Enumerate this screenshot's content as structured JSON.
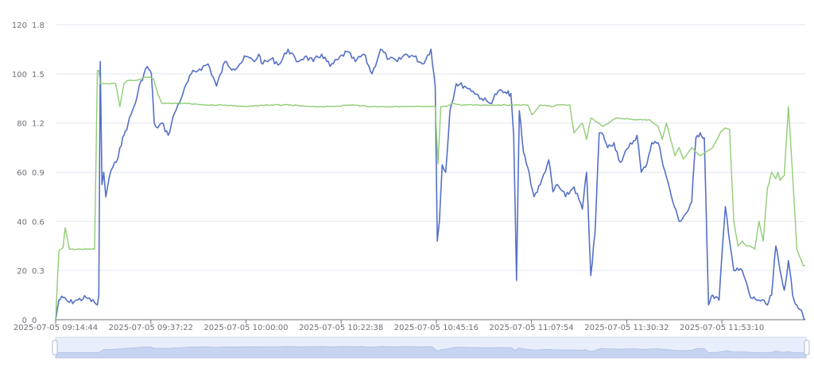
{
  "chart_data": {
    "type": "line",
    "title": "",
    "y_left": {
      "min": 0,
      "max": 120,
      "ticks": [
        0,
        20,
        40,
        60,
        80,
        100,
        120
      ]
    },
    "y_right": {
      "min": 0,
      "max": 1.8,
      "ticks": [
        "0",
        "0.3",
        "0.6",
        "0.9",
        "1.2",
        "1.5",
        "1.8"
      ]
    },
    "x_axis": {
      "start": "2025-07-05 09:14:44",
      "end": "2025-07-05 12:13:00",
      "tick_labels": [
        "2025-07-05 09:14:44",
        "2025-07-05 09:37:22",
        "2025-07-05 10:00:00",
        "2025-07-05 10:22:38",
        "2025-07-05 10:45:16",
        "2025-07-05 11:07:54",
        "2025-07-05 11:30:32",
        "2025-07-05 11:53:10"
      ]
    },
    "grid": true,
    "legend": "none",
    "series": [
      {
        "axis": "left",
        "color": "#5470c6",
        "x": [
          "09:14:44",
          "09:15:30",
          "09:16:30",
          "09:18:00",
          "09:20:00",
          "09:22:00",
          "09:24:00",
          "09:24:40",
          "09:25:00",
          "09:25:20",
          "09:25:45",
          "09:26:10",
          "09:26:40",
          "09:27:30",
          "09:28:20",
          "09:29:10",
          "09:30:00",
          "09:31:00",
          "09:32:00",
          "09:33:00",
          "09:34:00",
          "09:35:00",
          "09:36:30",
          "09:37:30",
          "09:38:10",
          "09:39:00",
          "09:40:00",
          "09:41:30",
          "09:43:00",
          "09:45:00",
          "09:47:00",
          "09:49:00",
          "09:51:00",
          "09:53:00",
          "09:55:00",
          "09:57:00",
          "09:58:30",
          "10:00:00",
          "10:02:00",
          "10:03:00",
          "10:04:00",
          "10:06:00",
          "10:08:00",
          "10:10:00",
          "10:12:00",
          "10:14:00",
          "10:16:00",
          "10:18:00",
          "10:20:00",
          "10:22:00",
          "10:24:00",
          "10:26:00",
          "10:28:00",
          "10:30:00",
          "10:32:00",
          "10:34:00",
          "10:36:00",
          "10:38:00",
          "10:40:00",
          "10:42:00",
          "10:44:00",
          "10:45:00",
          "10:45:30",
          "10:46:00",
          "10:46:40",
          "10:47:30",
          "10:48:30",
          "10:50:00",
          "10:52:00",
          "10:54:00",
          "10:56:00",
          "10:58:00",
          "11:00:00",
          "11:02:00",
          "11:03:00",
          "11:03:40",
          "11:04:20",
          "11:05:00",
          "11:06:00",
          "11:07:00",
          "11:08:30",
          "11:10:00",
          "11:12:00",
          "11:13:00",
          "11:14:00",
          "11:16:00",
          "11:18:00",
          "11:20:00",
          "11:21:00",
          "11:22:00",
          "11:23:00",
          "11:24:00",
          "11:25:00",
          "11:26:00",
          "11:27:30",
          "11:29:00",
          "11:31:00",
          "11:33:00",
          "11:34:00",
          "11:35:00",
          "11:36:30",
          "11:38:00",
          "11:40:00",
          "11:41:30",
          "11:43:00",
          "11:45:00",
          "11:46:00",
          "11:47:00",
          "11:48:00",
          "11:49:00",
          "11:50:00",
          "11:51:00",
          "11:52:30",
          "11:54:00",
          "11:56:00",
          "11:58:00",
          "12:00:00",
          "12:02:00",
          "12:04:00",
          "12:05:00",
          "12:06:00",
          "12:07:00",
          "12:08:00",
          "12:09:00",
          "12:10:00",
          "12:11:00",
          "12:12:00",
          "12:13:00"
        ],
        "y": [
          0,
          8,
          9,
          7,
          8,
          9,
          7,
          6,
          10,
          105,
          55,
          60,
          50,
          58,
          62,
          64,
          70,
          75,
          80,
          85,
          90,
          97,
          103,
          100,
          80,
          78,
          80,
          75,
          84,
          92,
          100,
          102,
          104,
          95,
          105,
          102,
          104,
          107,
          105,
          108,
          104,
          106,
          104,
          110,
          105,
          107,
          105,
          108,
          103,
          106,
          109,
          105,
          108,
          100,
          110,
          106,
          105,
          108,
          107,
          104,
          110,
          95,
          32,
          40,
          63,
          60,
          85,
          96,
          95,
          93,
          90,
          88,
          93,
          92,
          92,
          75,
          16,
          85,
          68,
          62,
          50,
          55,
          65,
          52,
          55,
          50,
          54,
          45,
          60,
          18,
          35,
          76,
          75,
          70,
          72,
          64,
          70,
          75,
          60,
          62,
          72,
          72,
          58,
          48,
          40,
          44,
          48,
          74,
          76,
          74,
          6,
          10,
          8,
          46,
          20,
          20,
          9,
          8,
          6,
          10,
          30,
          20,
          12,
          24,
          10,
          6,
          4,
          0
        ]
      },
      {
        "axis": "right",
        "color": "#91cc75",
        "x": [
          "09:14:44",
          "09:15:30",
          "09:16:30",
          "09:17:00",
          "09:18:00",
          "09:20:00",
          "09:22:00",
          "09:23:00",
          "09:24:00",
          "09:24:40",
          "09:25:00",
          "09:25:20",
          "09:26:00",
          "09:27:00",
          "09:29:00",
          "09:30:00",
          "09:31:00",
          "09:32:00",
          "09:34:00",
          "09:36:00",
          "09:37:00",
          "09:38:00",
          "09:39:00",
          "09:40:00",
          "09:45:00",
          "09:50:00",
          "09:55:00",
          "10:00:00",
          "10:05:00",
          "10:10:00",
          "10:15:00",
          "10:20:00",
          "10:25:00",
          "10:30:00",
          "10:35:00",
          "10:40:00",
          "10:44:00",
          "10:45:00",
          "10:45:40",
          "10:46:20",
          "10:47:30",
          "10:49:00",
          "10:51:00",
          "10:52:00",
          "10:55:00",
          "11:00:00",
          "11:04:00",
          "11:05:00",
          "11:07:00",
          "11:08:00",
          "11:10:00",
          "11:13:00",
          "11:14:00",
          "11:17:00",
          "11:18:00",
          "11:20:00",
          "11:21:00",
          "11:22:00",
          "11:25:00",
          "11:28:00",
          "11:33:00",
          "11:34:00",
          "11:36:00",
          "11:38:00",
          "11:39:00",
          "11:40:00",
          "11:42:00",
          "11:43:00",
          "11:44:00",
          "11:46:00",
          "11:48:00",
          "11:51:00",
          "11:53:00",
          "11:54:00",
          "11:55:00",
          "11:56:00",
          "11:57:00",
          "11:58:00",
          "11:59:00",
          "12:00:00",
          "12:01:00",
          "12:02:00",
          "12:03:00",
          "12:04:00",
          "12:05:00",
          "12:05:30",
          "12:06:00",
          "12:06:30",
          "12:07:00",
          "12:08:00",
          "12:09:00",
          "12:10:00",
          "12:11:00",
          "12:12:30",
          "12:13:00"
        ],
        "y": [
          0,
          0.42,
          0.44,
          0.56,
          0.43,
          0.43,
          0.43,
          0.43,
          0.43,
          1.52,
          1.52,
          1.44,
          1.44,
          1.44,
          1.44,
          1.3,
          1.44,
          1.46,
          1.46,
          1.48,
          1.48,
          1.47,
          1.38,
          1.32,
          1.32,
          1.31,
          1.31,
          1.3,
          1.31,
          1.31,
          1.3,
          1.3,
          1.31,
          1.3,
          1.3,
          1.3,
          1.3,
          1.3,
          0.95,
          1.3,
          1.3,
          1.32,
          1.31,
          1.31,
          1.31,
          1.31,
          1.31,
          1.31,
          1.31,
          1.25,
          1.31,
          1.3,
          1.31,
          1.31,
          1.14,
          1.2,
          1.1,
          1.23,
          1.18,
          1.23,
          1.22,
          1.22,
          1.22,
          1.18,
          1.1,
          1.2,
          1.0,
          1.05,
          0.98,
          1.05,
          1.0,
          1.05,
          1.15,
          1.17,
          1.16,
          0.6,
          0.45,
          0.48,
          0.45,
          0.45,
          0.43,
          0.6,
          0.48,
          0.8,
          0.9,
          0.88,
          0.86,
          0.9,
          0.85,
          0.88,
          1.3,
          0.88,
          0.43,
          0.33,
          0.33
        ]
      }
    ],
    "data_zoom": {
      "start_fraction": 0,
      "end_fraction": 1
    }
  }
}
